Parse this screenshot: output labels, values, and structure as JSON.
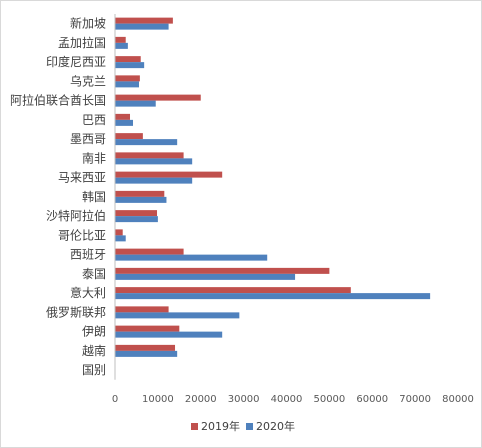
{
  "chart_data": {
    "type": "bar",
    "orientation": "horizontal",
    "categories": [
      "新加坡",
      "孟加拉国",
      "印度尼西亚",
      "乌克兰",
      "阿拉伯联合酋长国",
      "巴西",
      "墨西哥",
      "南非",
      "马来西亚",
      "韩国",
      "沙特阿拉伯",
      "哥伦比亚",
      "西班牙",
      "泰国",
      "意大利",
      "俄罗斯联邦",
      "伊朗",
      "越南",
      "国别"
    ],
    "series": [
      {
        "name": "2019年",
        "color": "#c0504d",
        "values": [
          13500,
          2500,
          6000,
          5800,
          20000,
          3500,
          6500,
          16000,
          25000,
          11500,
          9800,
          1800,
          16000,
          50000,
          55000,
          12500,
          15000,
          14000,
          0
        ]
      },
      {
        "name": "2020年",
        "color": "#4f81bd",
        "values": [
          12500,
          3000,
          6800,
          5600,
          9500,
          4200,
          14500,
          18000,
          18000,
          12000,
          10000,
          2500,
          35500,
          42000,
          73500,
          29000,
          25000,
          14500,
          0
        ]
      }
    ],
    "xlim": [
      0,
      80000
    ],
    "xticks": [
      "0",
      "10000",
      "20000",
      "30000",
      "40000",
      "50000",
      "60000",
      "70000",
      "80000"
    ],
    "legend_position": "bottom",
    "grid": false
  }
}
